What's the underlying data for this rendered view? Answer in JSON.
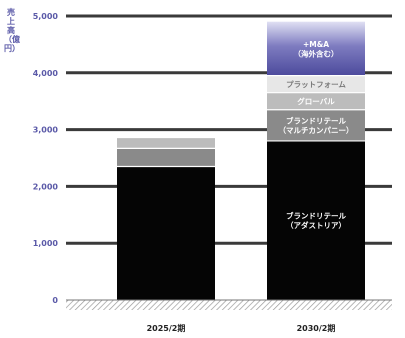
{
  "chart_data": {
    "type": "bar",
    "stacked": true,
    "ylabel": "売上高（億円）",
    "ylim": [
      0,
      5000
    ],
    "yticks": [
      "0",
      "1,000",
      "2,000",
      "3,000",
      "4,000",
      "5,000"
    ],
    "ytick_values": [
      0,
      1000,
      2000,
      3000,
      4000,
      5000
    ],
    "grid": true,
    "categories": [
      "2025/2期",
      "2030/2期"
    ],
    "series": [
      {
        "name": "ブランドリテール（アダストリア）",
        "values": [
          2350,
          2800
        ],
        "color": "#050505"
      },
      {
        "name": "ブランドリテール（マルチカンパニー）",
        "values": [
          320,
          550
        ],
        "color": "#8a8a8a"
      },
      {
        "name": "グローバル",
        "values": [
          180,
          300
        ],
        "color": "#bcbcbc"
      },
      {
        "name": "プラットフォーム",
        "values": [
          0,
          300
        ],
        "color": "#e7e7e7"
      },
      {
        "name": "+M&A（海外含む）",
        "values": [
          0,
          950
        ],
        "color": "#5a58a8"
      }
    ],
    "segment_labels": [
      {
        "category": 1,
        "series": 0,
        "lines": [
          "ブランドリテール",
          "（アダストリア）"
        ],
        "color": "#ffffff"
      },
      {
        "category": 1,
        "series": 1,
        "lines": [
          "ブランドリテール",
          "（マルチカンパニー）"
        ],
        "color": "#ffffff"
      },
      {
        "category": 1,
        "series": 2,
        "lines": [
          "グローバル"
        ],
        "color": "#ffffff"
      },
      {
        "category": 1,
        "series": 3,
        "lines": [
          "プラットフォーム"
        ],
        "color": "#777777"
      },
      {
        "category": 1,
        "series": 4,
        "lines": [
          "+M&A",
          "（海外含む）"
        ],
        "color": "#ffffff"
      }
    ]
  }
}
